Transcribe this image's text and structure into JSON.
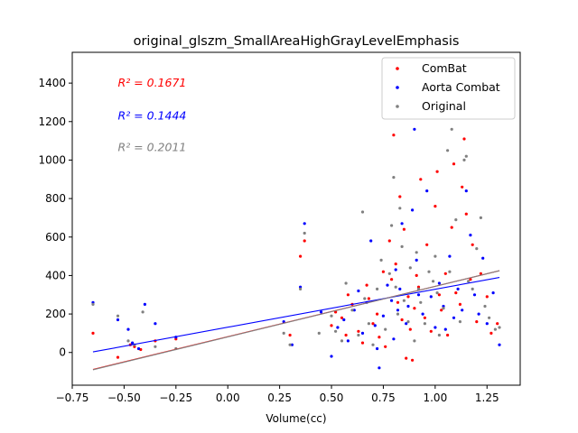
{
  "chart_data": {
    "type": "scatter",
    "title": "original_glszm_SmallAreaHighGrayLevelEmphasis",
    "xlabel": "Volume(cc)",
    "ylabel": "",
    "xlim": [
      -0.75,
      1.41
    ],
    "ylim": [
      -170,
      1560
    ],
    "xticks": [
      -0.75,
      -0.5,
      -0.25,
      0.0,
      0.25,
      0.5,
      0.75,
      1.0,
      1.25
    ],
    "xtick_labels": [
      "−0.75",
      "−0.50",
      "−0.25",
      "0.00",
      "0.25",
      "0.50",
      "0.75",
      "1.00",
      "1.25"
    ],
    "yticks": [
      0,
      200,
      400,
      600,
      800,
      1000,
      1200,
      1400
    ],
    "ytick_labels": [
      "0",
      "200",
      "400",
      "600",
      "800",
      "1000",
      "1200",
      "1400"
    ],
    "grid": false,
    "legend_position": "top-right",
    "annotations": [
      {
        "label": "R² = 0.1671",
        "color": "#ff0000",
        "x": -0.53,
        "y": 1400
      },
      {
        "label": "R² = 0.1444",
        "color": "#0000ff",
        "x": -0.53,
        "y": 1230
      },
      {
        "label": "R² = 0.2011",
        "color": "#808080",
        "x": -0.53,
        "y": 1065
      }
    ],
    "series": [
      {
        "name": "ComBat",
        "color": "#ff0000",
        "fit": {
          "x0": -0.65,
          "y0": -88,
          "x1": 1.31,
          "y1": 425
        },
        "points": [
          [
            -0.65,
            100
          ],
          [
            -0.53,
            -25
          ],
          [
            -0.47,
            40
          ],
          [
            -0.45,
            30
          ],
          [
            -0.42,
            15
          ],
          [
            -0.35,
            60
          ],
          [
            -0.25,
            70
          ],
          [
            0.3,
            90
          ],
          [
            0.35,
            500
          ],
          [
            0.37,
            580
          ],
          [
            0.5,
            140
          ],
          [
            0.52,
            210
          ],
          [
            0.55,
            180
          ],
          [
            0.57,
            90
          ],
          [
            0.58,
            300
          ],
          [
            0.6,
            250
          ],
          [
            0.63,
            110
          ],
          [
            0.65,
            50
          ],
          [
            0.67,
            350
          ],
          [
            0.68,
            280
          ],
          [
            0.7,
            150
          ],
          [
            0.72,
            200
          ],
          [
            0.73,
            80
          ],
          [
            0.75,
            420
          ],
          [
            0.76,
            30
          ],
          [
            0.78,
            580
          ],
          [
            0.79,
            380
          ],
          [
            0.8,
            1130
          ],
          [
            0.81,
            460
          ],
          [
            0.82,
            260
          ],
          [
            0.83,
            810
          ],
          [
            0.84,
            170
          ],
          [
            0.85,
            640
          ],
          [
            0.86,
            -30
          ],
          [
            0.87,
            290
          ],
          [
            0.88,
            120
          ],
          [
            0.89,
            -40
          ],
          [
            0.9,
            230
          ],
          [
            0.91,
            400
          ],
          [
            0.92,
            340
          ],
          [
            0.93,
            900
          ],
          [
            0.95,
            180
          ],
          [
            0.96,
            560
          ],
          [
            0.98,
            110
          ],
          [
            1.0,
            760
          ],
          [
            1.01,
            940
          ],
          [
            1.02,
            300
          ],
          [
            1.03,
            220
          ],
          [
            1.05,
            410
          ],
          [
            1.06,
            90
          ],
          [
            1.08,
            650
          ],
          [
            1.09,
            980
          ],
          [
            1.1,
            310
          ],
          [
            1.12,
            250
          ],
          [
            1.13,
            860
          ],
          [
            1.14,
            1110
          ],
          [
            1.15,
            720
          ],
          [
            1.17,
            380
          ],
          [
            1.18,
            560
          ],
          [
            1.2,
            160
          ],
          [
            1.22,
            410
          ],
          [
            1.25,
            290
          ],
          [
            1.27,
            100
          ],
          [
            1.3,
            150
          ]
        ]
      },
      {
        "name": "Aorta Combat",
        "color": "#0000ff",
        "fit": {
          "x0": -0.65,
          "y0": 3,
          "x1": 1.31,
          "y1": 390
        },
        "points": [
          [
            -0.65,
            260
          ],
          [
            -0.53,
            170
          ],
          [
            -0.48,
            120
          ],
          [
            -0.46,
            50
          ],
          [
            -0.43,
            20
          ],
          [
            -0.4,
            250
          ],
          [
            -0.35,
            150
          ],
          [
            -0.25,
            80
          ],
          [
            0.27,
            160
          ],
          [
            0.31,
            40
          ],
          [
            0.35,
            340
          ],
          [
            0.37,
            670
          ],
          [
            0.45,
            210
          ],
          [
            0.5,
            -20
          ],
          [
            0.53,
            130
          ],
          [
            0.56,
            170
          ],
          [
            0.58,
            60
          ],
          [
            0.61,
            220
          ],
          [
            0.63,
            320
          ],
          [
            0.65,
            100
          ],
          [
            0.67,
            260
          ],
          [
            0.69,
            580
          ],
          [
            0.71,
            140
          ],
          [
            0.72,
            20
          ],
          [
            0.73,
            -80
          ],
          [
            0.75,
            190
          ],
          [
            0.77,
            350
          ],
          [
            0.79,
            270
          ],
          [
            0.8,
            70
          ],
          [
            0.81,
            430
          ],
          [
            0.82,
            220
          ],
          [
            0.83,
            330
          ],
          [
            0.84,
            670
          ],
          [
            0.86,
            150
          ],
          [
            0.87,
            240
          ],
          [
            0.89,
            740
          ],
          [
            0.9,
            1160
          ],
          [
            0.91,
            480
          ],
          [
            0.92,
            300
          ],
          [
            0.94,
            200
          ],
          [
            0.96,
            840
          ],
          [
            0.98,
            290
          ],
          [
            1.0,
            130
          ],
          [
            1.02,
            360
          ],
          [
            1.04,
            240
          ],
          [
            1.05,
            120
          ],
          [
            1.07,
            500
          ],
          [
            1.09,
            180
          ],
          [
            1.11,
            330
          ],
          [
            1.13,
            220
          ],
          [
            1.15,
            840
          ],
          [
            1.17,
            610
          ],
          [
            1.19,
            300
          ],
          [
            1.21,
            200
          ],
          [
            1.23,
            490
          ],
          [
            1.25,
            150
          ],
          [
            1.28,
            310
          ],
          [
            1.31,
            40
          ]
        ]
      },
      {
        "name": "Original",
        "color": "#808080",
        "fit": {
          "x0": -0.65,
          "y0": -90,
          "x1": 1.31,
          "y1": 425
        },
        "points": [
          [
            -0.65,
            250
          ],
          [
            -0.53,
            190
          ],
          [
            -0.48,
            60
          ],
          [
            -0.45,
            40
          ],
          [
            -0.41,
            210
          ],
          [
            -0.35,
            30
          ],
          [
            -0.25,
            20
          ],
          [
            0.27,
            100
          ],
          [
            0.3,
            40
          ],
          [
            0.35,
            330
          ],
          [
            0.37,
            620
          ],
          [
            0.44,
            100
          ],
          [
            0.5,
            190
          ],
          [
            0.52,
            110
          ],
          [
            0.55,
            60
          ],
          [
            0.57,
            360
          ],
          [
            0.6,
            220
          ],
          [
            0.63,
            90
          ],
          [
            0.65,
            730
          ],
          [
            0.66,
            280
          ],
          [
            0.68,
            150
          ],
          [
            0.7,
            40
          ],
          [
            0.72,
            330
          ],
          [
            0.74,
            480
          ],
          [
            0.76,
            120
          ],
          [
            0.78,
            410
          ],
          [
            0.79,
            660
          ],
          [
            0.8,
            910
          ],
          [
            0.81,
            340
          ],
          [
            0.82,
            200
          ],
          [
            0.83,
            750
          ],
          [
            0.84,
            550
          ],
          [
            0.85,
            270
          ],
          [
            0.87,
            160
          ],
          [
            0.88,
            440
          ],
          [
            0.9,
            60
          ],
          [
            0.91,
            520
          ],
          [
            0.92,
            330
          ],
          [
            0.93,
            260
          ],
          [
            0.95,
            150
          ],
          [
            0.97,
            420
          ],
          [
            0.99,
            370
          ],
          [
            1.0,
            500
          ],
          [
            1.01,
            310
          ],
          [
            1.02,
            90
          ],
          [
            1.04,
            230
          ],
          [
            1.06,
            1050
          ],
          [
            1.07,
            420
          ],
          [
            1.08,
            1160
          ],
          [
            1.1,
            690
          ],
          [
            1.12,
            160
          ],
          [
            1.14,
            1000
          ],
          [
            1.15,
            1020
          ],
          [
            1.16,
            370
          ],
          [
            1.18,
            330
          ],
          [
            1.2,
            540
          ],
          [
            1.22,
            700
          ],
          [
            1.24,
            240
          ],
          [
            1.26,
            180
          ],
          [
            1.29,
            120
          ],
          [
            1.31,
            130
          ]
        ]
      }
    ]
  }
}
